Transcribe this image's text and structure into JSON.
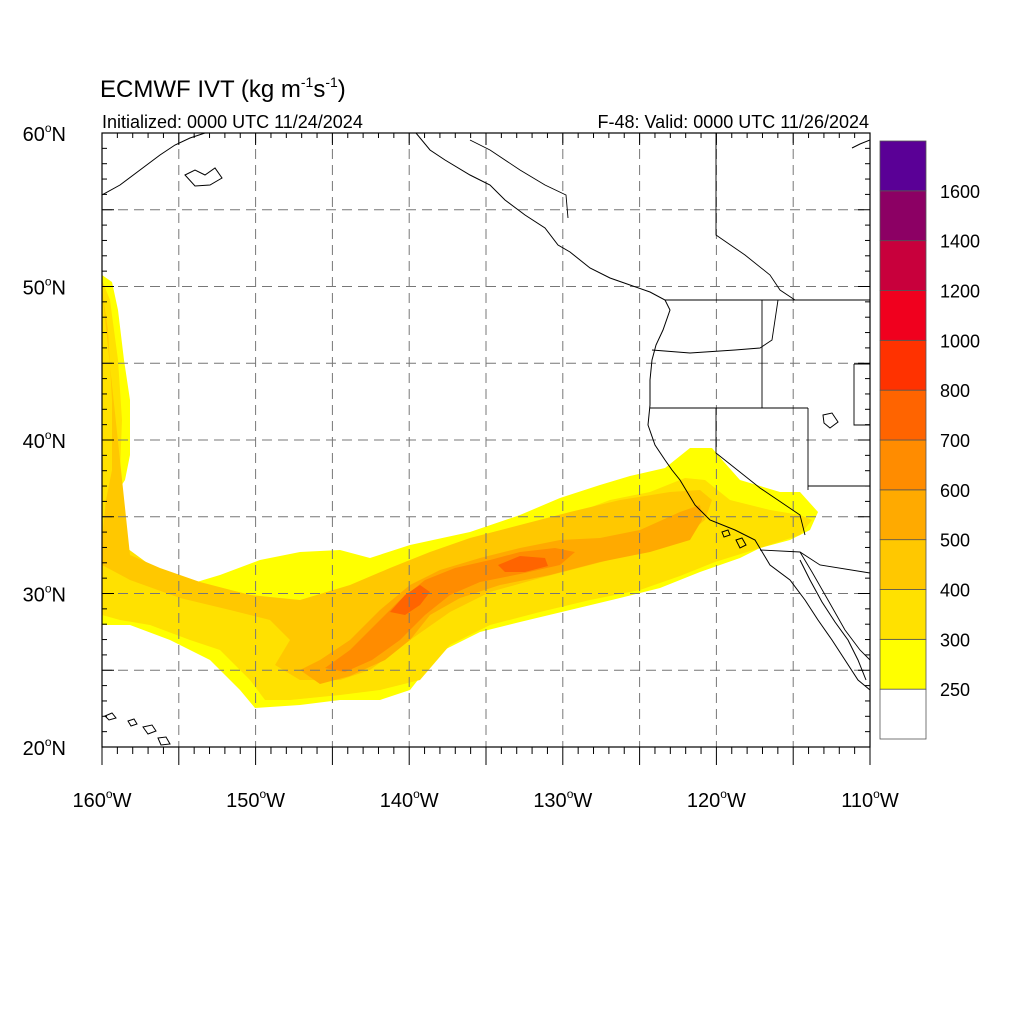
{
  "title": {
    "main": "ECMWF IVT (kg m",
    "exp1": "-1",
    "mid": "s",
    "exp2": "-1",
    "close": ")"
  },
  "initialized": "Initialized: 0000 UTC 11/24/2024",
  "valid": "F-48: Valid: 0000 UTC 11/26/2024",
  "map": {
    "lon_range": [
      -160,
      -110
    ],
    "lat_range": [
      20,
      60
    ],
    "lon_ticks": [
      {
        "value": -160,
        "label": "160",
        "suffix": "W"
      },
      {
        "value": -150,
        "label": "150",
        "suffix": "W"
      },
      {
        "value": -140,
        "label": "140",
        "suffix": "W"
      },
      {
        "value": -130,
        "label": "130",
        "suffix": "W"
      },
      {
        "value": -120,
        "label": "120",
        "suffix": "W"
      },
      {
        "value": -110,
        "label": "110",
        "suffix": "W"
      }
    ],
    "lat_ticks": [
      {
        "value": 60,
        "label": "60",
        "suffix": "N"
      },
      {
        "value": 50,
        "label": "50",
        "suffix": "N"
      },
      {
        "value": 40,
        "label": "40",
        "suffix": "N"
      },
      {
        "value": 30,
        "label": "30",
        "suffix": "N"
      },
      {
        "value": 20,
        "label": "20",
        "suffix": "N"
      }
    ],
    "gridlines_lon": [
      -155,
      -150,
      -145,
      -140,
      -135,
      -130,
      -125,
      -120,
      -115
    ],
    "gridlines_lat": [
      55,
      50,
      45,
      40,
      35,
      30,
      25
    ]
  },
  "colorbar": {
    "levels": [
      {
        "color": "#ffffff",
        "label": "250"
      },
      {
        "color": "#ffff00",
        "label": "300"
      },
      {
        "color": "#ffe100",
        "label": "400"
      },
      {
        "color": "#ffc800",
        "label": "500"
      },
      {
        "color": "#ffaa00",
        "label": "600"
      },
      {
        "color": "#ff8c00",
        "label": "700"
      },
      {
        "color": "#ff6400",
        "label": "800"
      },
      {
        "color": "#ff3200",
        "label": "1000"
      },
      {
        "color": "#f0001e",
        "label": "1200"
      },
      {
        "color": "#c8003c",
        "label": "1400"
      },
      {
        "color": "#8c0064",
        "label": "1600"
      },
      {
        "color": "#5a0096",
        "label": ""
      }
    ]
  }
}
